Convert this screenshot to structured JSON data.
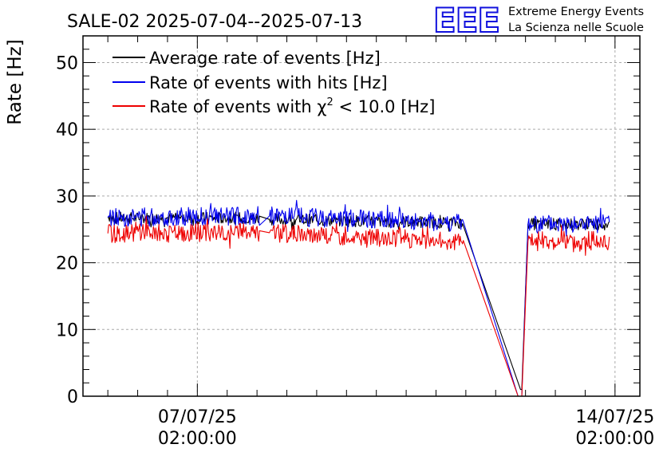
{
  "header": {
    "title": "SALE-02 2025-07-04--2025-07-13",
    "logo_letters": "EEE",
    "logo_line1": "Extreme Energy Events",
    "logo_line2": "La Scienza nelle Scuole"
  },
  "colors": {
    "average": "#000000",
    "hits": "#0000ee",
    "chi2": "#ee0000",
    "logo": "#1010dd",
    "grid": "#aaaaaa"
  },
  "chart_data": {
    "type": "line",
    "title": "SALE-02 2025-07-04--2025-07-13",
    "ylabel": "Rate [Hz]",
    "xlabel": "",
    "ylim": [
      0,
      54
    ],
    "yticks": [
      0,
      10,
      20,
      30,
      40,
      50
    ],
    "x_range": [
      "2025-07-05 04:00",
      "2025-07-14 12:00"
    ],
    "xticks": [
      {
        "date": "2025-07-07 02:00",
        "label_line1": "07/07/25",
        "label_line2": "02:00:00"
      },
      {
        "date": "2025-07-14 02:00",
        "label_line1": "14/07/25",
        "label_line2": "02:00:00"
      }
    ],
    "grid": true,
    "legend_position": "top-left",
    "series": [
      {
        "name": "Average rate of events [Hz]",
        "color": "#000000",
        "points": [
          [
            "2025-07-05 14:00",
            26.7
          ],
          [
            "2025-07-08 03:00",
            26.7
          ],
          [
            "2025-07-08 07:00",
            26.5
          ],
          [
            "2025-07-11 13:00",
            26.0
          ],
          [
            "2025-07-12 12:00",
            1.0
          ],
          [
            "2025-07-12 12:30",
            1.0
          ],
          [
            "2025-07-12 15:00",
            25.8
          ],
          [
            "2025-07-14 00:00",
            25.8
          ]
        ]
      },
      {
        "name": "Rate of events with hits [Hz]",
        "color": "#0000ee",
        "points": [
          [
            "2025-07-05 14:00",
            26.8
          ],
          [
            "2025-07-08 03:00",
            27.0
          ],
          [
            "2025-07-08 07:00",
            27.0
          ],
          [
            "2025-07-11 13:00",
            26.0
          ],
          [
            "2025-07-12 11:00",
            0.0
          ],
          [
            "2025-07-12 12:30",
            0.0
          ],
          [
            "2025-07-12 15:00",
            25.8
          ],
          [
            "2025-07-14 00:00",
            25.8
          ]
        ]
      },
      {
        "name": "Rate of events with χ² < 10.0 [Hz]",
        "legend_main": "Rate of events with χ",
        "legend_sup": "2",
        "legend_tail": " < 10.0 [Hz]",
        "color": "#ee0000",
        "points": [
          [
            "2025-07-05 14:00",
            24.4
          ],
          [
            "2025-07-08 03:00",
            24.5
          ],
          [
            "2025-07-08 07:00",
            24.5
          ],
          [
            "2025-07-11 13:00",
            23.2
          ],
          [
            "2025-07-12 11:00",
            0.0
          ],
          [
            "2025-07-12 12:30",
            0.0
          ],
          [
            "2025-07-12 15:00",
            23.3
          ],
          [
            "2025-07-14 00:00",
            23.3
          ]
        ]
      }
    ]
  }
}
